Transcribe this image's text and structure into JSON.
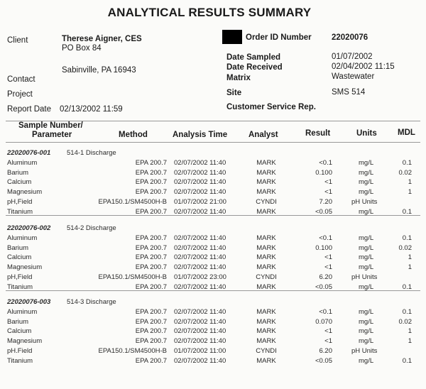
{
  "title": "ANALYTICAL RESULTS SUMMARY",
  "client": {
    "label": "Client",
    "name": "Therese Aigner, CES",
    "address1": "PO Box 84",
    "address2": "Sabinville, PA 16943"
  },
  "contact_label": "Contact",
  "project_label": "Project",
  "report_date": {
    "label": "Report Date",
    "value": "02/13/2002 11:59"
  },
  "order_id": {
    "label": "Order ID Number",
    "value": "22020076"
  },
  "date_sampled": {
    "label": "Date Sampled",
    "value": "01/07/2002"
  },
  "date_received": {
    "label": "Date Received",
    "value": "02/04/2002 11:15"
  },
  "matrix": {
    "label": "Matrix",
    "value": "Wastewater"
  },
  "site": {
    "label": "Site",
    "value": "SMS 514"
  },
  "csr_label": "Customer Service Rep.",
  "table": {
    "headers": {
      "sample_line1": "Sample Number/",
      "sample_line2": "Parameter",
      "method": "Method",
      "analysis_time": "Analysis Time",
      "analyst": "Analyst",
      "result": "Result",
      "units": "Units",
      "mdl": "MDL"
    },
    "groups": [
      {
        "sample_number": "22020076-001",
        "description": "514-1 Discharge",
        "rows": [
          {
            "parameter": "Aluminum",
            "method": "EPA 200.7",
            "time": "02/07/2002 11:40",
            "analyst": "MARK",
            "result": "<0.1",
            "units": "mg/L",
            "mdl": "0.1"
          },
          {
            "parameter": "Barium",
            "method": "EPA 200.7",
            "time": "02/07/2002 11:40",
            "analyst": "MARK",
            "result": "0.100",
            "units": "mg/L",
            "mdl": "0.02"
          },
          {
            "parameter": "Calcium",
            "method": "EPA 200.7",
            "time": "02/07/2002 11:40",
            "analyst": "MARK",
            "result": "<1",
            "units": "mg/L",
            "mdl": "1"
          },
          {
            "parameter": "Magnesium",
            "method": "EPA 200.7",
            "time": "02/07/2002 11:40",
            "analyst": "MARK",
            "result": "<1",
            "units": "mg/L",
            "mdl": "1"
          },
          {
            "parameter": "pH,Field",
            "method": "EPA150.1/SM4500H-B",
            "time": "01/07/2002 21:00",
            "analyst": "CYNDI",
            "result": "7.20",
            "units": "pH  Units",
            "mdl": ""
          },
          {
            "parameter": "Titanium",
            "method": "EPA 200.7",
            "time": "02/07/2002 11:40",
            "analyst": "MARK",
            "result": "<0.05",
            "units": "mg/L",
            "mdl": "0.1"
          }
        ]
      },
      {
        "sample_number": "22020076-002",
        "description": "514-2 Discharge",
        "rows": [
          {
            "parameter": "Aluminum",
            "method": "EPA 200.7",
            "time": "02/07/2002 11:40",
            "analyst": "MARK",
            "result": "<0.1",
            "units": "mg/L",
            "mdl": "0.1"
          },
          {
            "parameter": "Barium",
            "method": "EPA 200.7",
            "time": "02/07/2002 11:40",
            "analyst": "MARK",
            "result": "0.100",
            "units": "mg/L",
            "mdl": "0.02"
          },
          {
            "parameter": "Calcium",
            "method": "EPA 200.7",
            "time": "02/07/2002 11:40",
            "analyst": "MARK",
            "result": "<1",
            "units": "mg/L",
            "mdl": "1"
          },
          {
            "parameter": "Magnesium",
            "method": "EPA 200.7",
            "time": "02/07/2002 11:40",
            "analyst": "MARK",
            "result": "<1",
            "units": "mg/L",
            "mdl": "1"
          },
          {
            "parameter": "pH,Field",
            "method": "EPA150.1/SM4500H-B",
            "time": "01/07/2002 23:00",
            "analyst": "CYNDI",
            "result": "6.20",
            "units": "pH  Units",
            "mdl": ""
          },
          {
            "parameter": "Titanium",
            "method": "EPA 200.7",
            "time": "02/07/2002 11:40",
            "analyst": "MARK",
            "result": "<0.05",
            "units": "mg/L",
            "mdl": "0.1"
          }
        ]
      },
      {
        "sample_number": "22020076-003",
        "description": "514-3 Discharge",
        "rows": [
          {
            "parameter": "Aluminum",
            "method": "EPA 200.7",
            "time": "02/07/2002 11:40",
            "analyst": "MARK",
            "result": "<0.1",
            "units": "mg/L",
            "mdl": "0.1"
          },
          {
            "parameter": "Barium",
            "method": "EPA 200.7",
            "time": "02/07/2002 11:40",
            "analyst": "MARK",
            "result": "0.070",
            "units": "mg/L",
            "mdl": "0.02"
          },
          {
            "parameter": "Calcium",
            "method": "EPA 200.7",
            "time": "02/07/2002 11:40",
            "analyst": "MARK",
            "result": "<1",
            "units": "mg/L",
            "mdl": "1"
          },
          {
            "parameter": "Magnesium",
            "method": "EPA 200.7",
            "time": "02/07/2002 11:40",
            "analyst": "MARK",
            "result": "<1",
            "units": "mg/L",
            "mdl": "1"
          },
          {
            "parameter": "pH.Field",
            "method": "EPA150.1/SM4500H-B",
            "time": "01/07/2002 11:00",
            "analyst": "CYNDI",
            "result": "6.20",
            "units": "pH  Units",
            "mdl": ""
          },
          {
            "parameter": "Titanium",
            "method": "EPA 200.7",
            "time": "02/07/2002 11:40",
            "analyst": "MARK",
            "result": "<0.05",
            "units": "mg/L",
            "mdl": "0.1"
          }
        ]
      }
    ]
  }
}
